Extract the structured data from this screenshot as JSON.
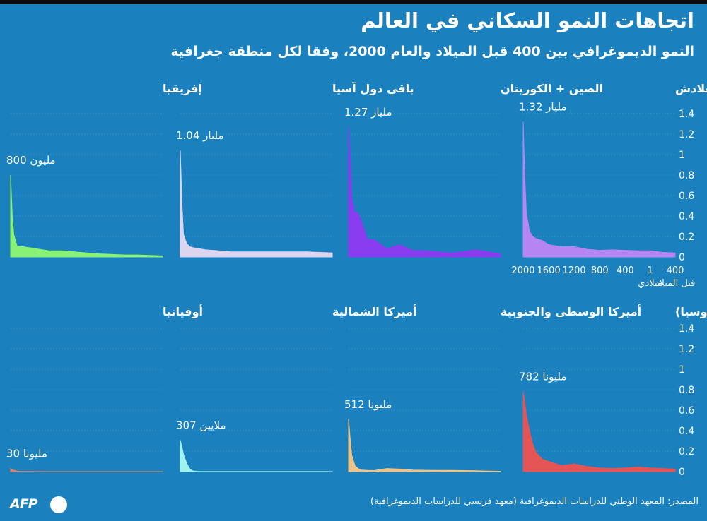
{
  "title": "اتجاهات النمو السكاني في العالم",
  "subtitle": "النمو الديموغرافي بين 400 قبل الميلاد والعام 2000، وفقا لكل منطقة جغرافية",
  "source": "المصدر: المعهد الوطني للدراسات الديموغرافية (معهد فرنسي للدراسات الديموغرافية)",
  "logo": {
    "text": "AFP"
  },
  "colors": {
    "background": "#1a80be",
    "text": "#ffffff",
    "grid": "#6fb0d8"
  },
  "chart_data": {
    "type": "area",
    "y_unit": "billions",
    "ylim": [
      0,
      1.4
    ],
    "y_ticks": [
      "1.4",
      "1.2",
      "1",
      "0.8",
      "0.6",
      "0.4",
      "0.2",
      "0"
    ],
    "x_ticks": [
      {
        "value": -400,
        "label": "400",
        "sublabel": "قبل الميلاد"
      },
      {
        "value": 1,
        "label": "1",
        "sublabel": "ميلادي"
      },
      {
        "value": 400,
        "label": "400"
      },
      {
        "value": 800,
        "label": "800"
      },
      {
        "value": 1200,
        "label": "1200"
      },
      {
        "value": 1600,
        "label": "1600"
      },
      {
        "value": 2000,
        "label": "2000"
      }
    ],
    "x_direction": "right-to-left",
    "panels": [
      {
        "name": "الهند + باكستان + بنغلادش",
        "color": "#b685f4",
        "peak_label": "1.32 مليار",
        "x": [
          -400,
          -200,
          0,
          200,
          400,
          600,
          800,
          1000,
          1200,
          1400,
          1600,
          1700,
          1800,
          1850,
          1900,
          1950,
          1975,
          2000
        ],
        "values": [
          0.04,
          0.045,
          0.06,
          0.06,
          0.065,
          0.07,
          0.065,
          0.075,
          0.1,
          0.1,
          0.12,
          0.16,
          0.18,
          0.2,
          0.25,
          0.43,
          0.78,
          1.32
        ]
      },
      {
        "name": "الصين + الكوريتان",
        "color": "#8a3cf0",
        "peak_label": "1.27 مليار",
        "x": [
          -400,
          -200,
          0,
          200,
          400,
          600,
          800,
          1000,
          1200,
          1400,
          1600,
          1700,
          1800,
          1850,
          1900,
          1950,
          1975,
          2000
        ],
        "values": [
          0.03,
          0.05,
          0.07,
          0.05,
          0.04,
          0.05,
          0.06,
          0.065,
          0.12,
          0.08,
          0.17,
          0.17,
          0.35,
          0.43,
          0.43,
          0.58,
          0.97,
          1.27
        ]
      },
      {
        "name": "باقي دول آسيا",
        "color": "#dcd5f0",
        "peak_label": "1.04 مليار",
        "x": [
          -400,
          -200,
          0,
          200,
          400,
          600,
          800,
          1000,
          1200,
          1400,
          1600,
          1700,
          1800,
          1850,
          1900,
          1950,
          1975,
          2000
        ],
        "values": [
          0.04,
          0.045,
          0.05,
          0.05,
          0.05,
          0.05,
          0.05,
          0.05,
          0.05,
          0.06,
          0.07,
          0.08,
          0.09,
          0.1,
          0.13,
          0.22,
          0.53,
          1.04
        ]
      },
      {
        "name": "إفريقيا",
        "color": "#88f274",
        "peak_label": "800 مليون",
        "x": [
          -400,
          -200,
          0,
          200,
          400,
          600,
          800,
          1000,
          1200,
          1400,
          1600,
          1700,
          1800,
          1850,
          1900,
          1950,
          1975,
          2000
        ],
        "values": [
          0.012,
          0.015,
          0.02,
          0.02,
          0.025,
          0.03,
          0.04,
          0.05,
          0.06,
          0.06,
          0.08,
          0.09,
          0.1,
          0.1,
          0.11,
          0.22,
          0.41,
          0.8
        ]
      },
      {
        "name": "أوروبا (وتشمل روسيا)",
        "color": "#e65555",
        "peak_label": "782 مليونا",
        "x": [
          -400,
          -200,
          0,
          200,
          400,
          600,
          800,
          1000,
          1200,
          1400,
          1600,
          1700,
          1800,
          1850,
          1900,
          1950,
          1975,
          2000
        ],
        "values": [
          0.025,
          0.03,
          0.035,
          0.045,
          0.035,
          0.03,
          0.035,
          0.05,
          0.075,
          0.06,
          0.1,
          0.12,
          0.19,
          0.27,
          0.4,
          0.55,
          0.68,
          0.782
        ]
      },
      {
        "name": "أميركا الوسطى والجنوبية",
        "color": "#ecc48a",
        "peak_label": "512 مليونا",
        "x": [
          -400,
          -200,
          0,
          200,
          400,
          600,
          800,
          1000,
          1200,
          1400,
          1600,
          1700,
          1800,
          1850,
          1900,
          1950,
          1975,
          2000
        ],
        "values": [
          0.003,
          0.005,
          0.008,
          0.01,
          0.012,
          0.012,
          0.013,
          0.015,
          0.025,
          0.03,
          0.01,
          0.012,
          0.015,
          0.03,
          0.06,
          0.16,
          0.32,
          0.512
        ]
      },
      {
        "name": "أميركا الشمالية",
        "color": "#9ff2ee",
        "peak_label": "307 ملايين",
        "x": [
          -400,
          -200,
          0,
          200,
          400,
          600,
          800,
          1000,
          1200,
          1400,
          1600,
          1700,
          1800,
          1850,
          1900,
          1950,
          1975,
          2000
        ],
        "values": [
          0.001,
          0.001,
          0.001,
          0.001,
          0.001,
          0.001,
          0.001,
          0.001,
          0.001,
          0.001,
          0.001,
          0.001,
          0.006,
          0.026,
          0.082,
          0.17,
          0.24,
          0.307
        ]
      },
      {
        "name": "أوقيانيا",
        "color": "#d9826a",
        "peak_label": "30 مليونا",
        "x": [
          -400,
          -200,
          0,
          200,
          400,
          600,
          800,
          1000,
          1200,
          1400,
          1600,
          1700,
          1800,
          1850,
          1900,
          1950,
          1975,
          2000
        ],
        "values": [
          0.001,
          0.001,
          0.001,
          0.001,
          0.001,
          0.001,
          0.001,
          0.001,
          0.001,
          0.001,
          0.002,
          0.002,
          0.002,
          0.002,
          0.006,
          0.013,
          0.021,
          0.03
        ]
      }
    ]
  }
}
